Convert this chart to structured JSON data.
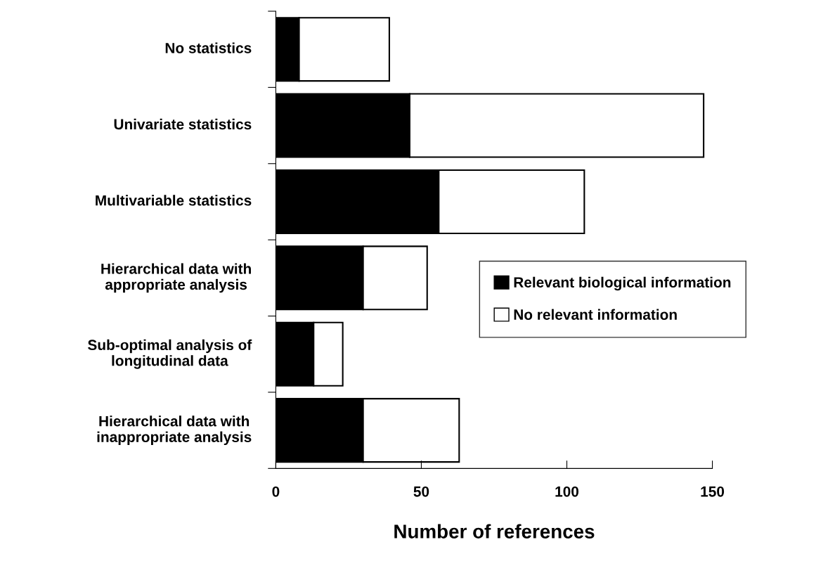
{
  "chart_data": {
    "type": "bar",
    "orientation": "horizontal",
    "stacked": true,
    "xlabel": "Number of references",
    "categories": [
      "No statistics",
      "Univariate statistics",
      "Multivariable statistics",
      "Hierarchical data with\nappropriate analysis",
      "Sub-optimal analysis of\nlongitudinal data",
      "Hierarchical data with\ninappropriate analysis"
    ],
    "series": [
      {
        "name": "Relevant biological information",
        "color": "#000000",
        "values": [
          8,
          46,
          56,
          30,
          13,
          30
        ]
      },
      {
        "name": "No relevant information",
        "color": "#ffffff",
        "values": [
          31,
          101,
          50,
          22,
          10,
          33
        ]
      }
    ],
    "xlim": [
      0,
      150
    ],
    "xticks": [
      0,
      50,
      100,
      150
    ],
    "grid": false,
    "legend": "right"
  }
}
